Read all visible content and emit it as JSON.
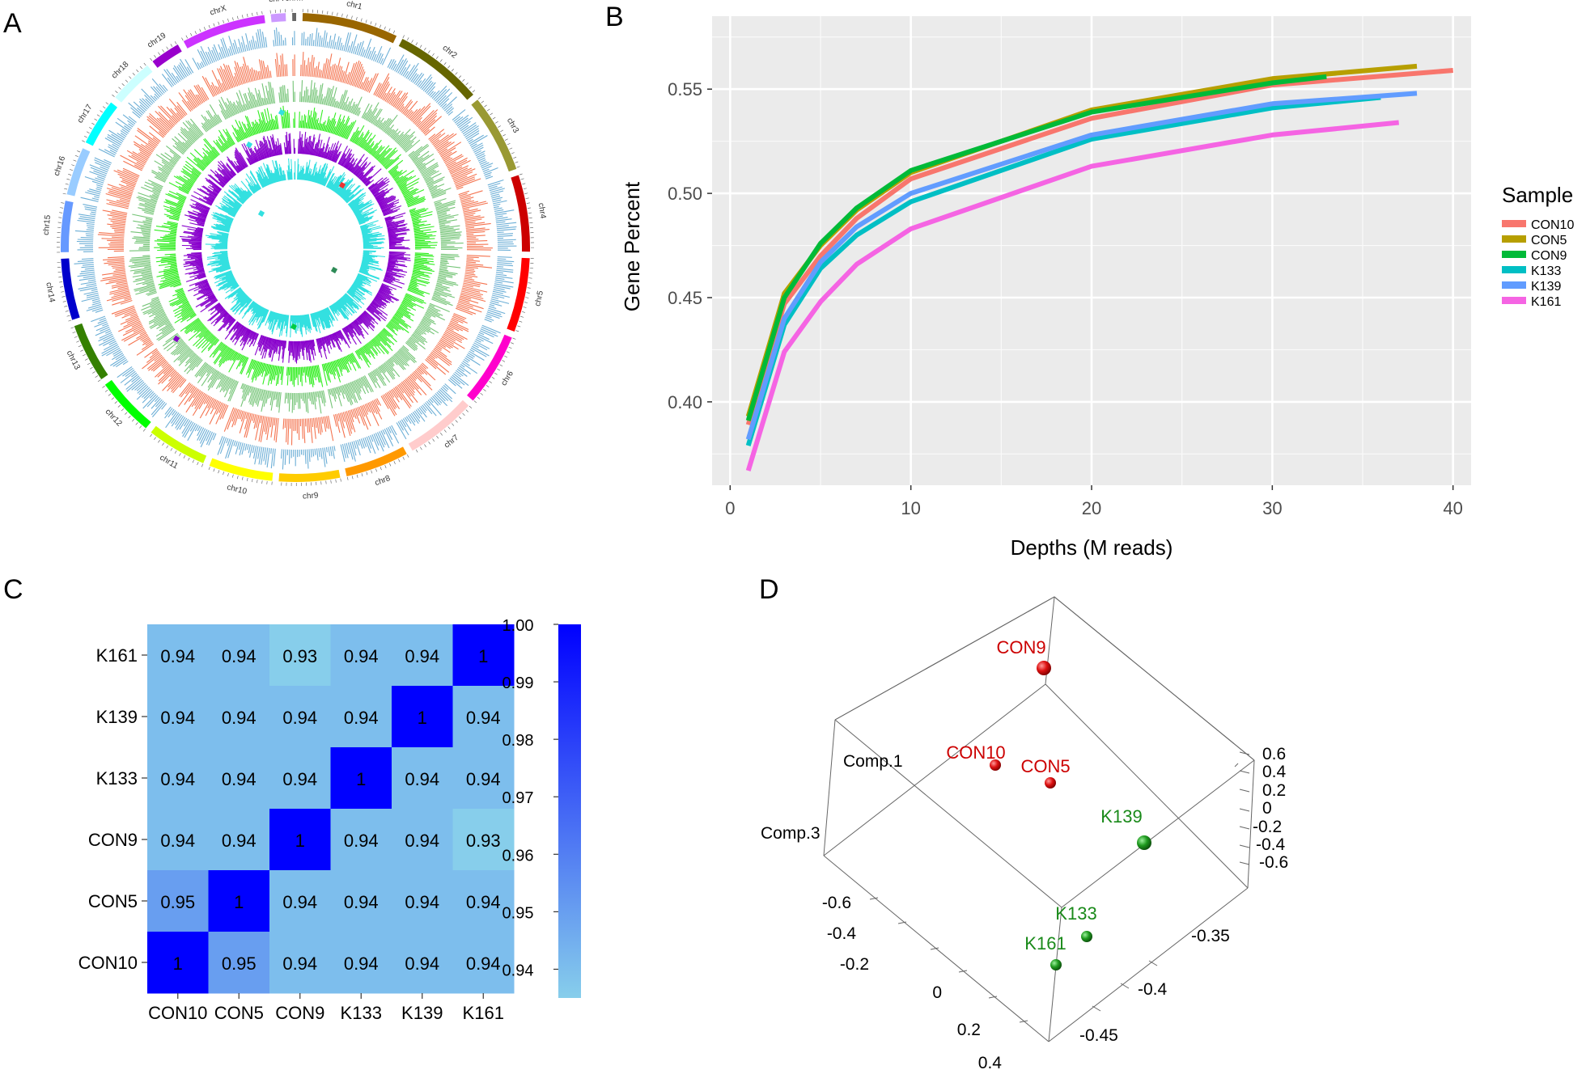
{
  "panels": {
    "a": "A",
    "b": "B",
    "c": "C",
    "d": "D"
  },
  "circos": {
    "chromosomes": [
      "chr1",
      "chr2",
      "chr3",
      "chr4",
      "chr5",
      "chr6",
      "chr7",
      "chr8",
      "chr9",
      "chr10",
      "chr11",
      "chr12",
      "chr13",
      "chr14",
      "chr15",
      "chr16",
      "chr17",
      "chr18",
      "chr19",
      "chrX",
      "chrY",
      "chrM"
    ],
    "chrom_colors": [
      "#996600",
      "#666600",
      "#999933",
      "#cc0000",
      "#ff0000",
      "#ff00cc",
      "#ffcccc",
      "#ff9900",
      "#ffcc00",
      "#ffff00",
      "#ccff00",
      "#00ff00",
      "#358000",
      "#0000cc",
      "#6699ff",
      "#99ccff",
      "#00ffff",
      "#ccffff",
      "#9900cc",
      "#cc33ff",
      "#cc99ff",
      "#666666"
    ],
    "track_colors": [
      "#6baed6",
      "#f4734f",
      "#74c476",
      "#33ee22",
      "#8800cc",
      "#33e0e0"
    ]
  },
  "chart_data": [
    {
      "type": "line",
      "xlabel": "Depths (M reads)",
      "ylabel": "Gene Percent",
      "xlim": [
        -1,
        41
      ],
      "ylim": [
        0.36,
        0.585
      ],
      "x_ticks": [
        0,
        10,
        20,
        30,
        40
      ],
      "y_ticks": [
        0.4,
        0.45,
        0.5,
        0.55
      ],
      "y_tick_labels": [
        "0.40",
        "0.45",
        "0.50",
        "0.55"
      ],
      "legend_title": "Sample",
      "legend_position": "right",
      "series": [
        {
          "name": "CON10",
          "color": "#f8766d",
          "x": [
            1,
            3,
            5,
            7,
            10,
            20,
            30,
            40
          ],
          "y": [
            0.389,
            0.447,
            0.47,
            0.488,
            0.507,
            0.536,
            0.552,
            0.559
          ]
        },
        {
          "name": "CON5",
          "color": "#b79f00",
          "x": [
            1,
            3,
            5,
            7,
            10,
            20,
            30,
            38
          ],
          "y": [
            0.393,
            0.452,
            0.475,
            0.492,
            0.51,
            0.54,
            0.555,
            0.561
          ]
        },
        {
          "name": "CON9",
          "color": "#00ba38",
          "x": [
            1,
            3,
            5,
            7,
            10,
            20,
            30,
            33
          ],
          "y": [
            0.391,
            0.45,
            0.476,
            0.493,
            0.511,
            0.539,
            0.553,
            0.556
          ]
        },
        {
          "name": "K133",
          "color": "#00bfc4",
          "x": [
            1,
            3,
            5,
            7,
            10,
            20,
            30,
            36
          ],
          "y": [
            0.379,
            0.437,
            0.464,
            0.48,
            0.496,
            0.526,
            0.541,
            0.546
          ]
        },
        {
          "name": "K139",
          "color": "#619cff",
          "x": [
            1,
            3,
            5,
            7,
            10,
            20,
            30,
            38
          ],
          "y": [
            0.382,
            0.44,
            0.467,
            0.484,
            0.5,
            0.528,
            0.543,
            0.548
          ]
        },
        {
          "name": "K161",
          "color": "#f564e3",
          "x": [
            1,
            3,
            5,
            7,
            10,
            20,
            30,
            37
          ],
          "y": [
            0.367,
            0.424,
            0.448,
            0.466,
            0.483,
            0.513,
            0.528,
            0.534
          ]
        }
      ]
    },
    {
      "type": "heatmap",
      "x_categories": [
        "CON10",
        "CON5",
        "CON9",
        "K133",
        "K139",
        "K161"
      ],
      "y_categories": [
        "K161",
        "K139",
        "K133",
        "CON9",
        "CON5",
        "CON10"
      ],
      "values": [
        [
          0.94,
          0.94,
          0.93,
          0.94,
          0.94,
          1
        ],
        [
          0.94,
          0.94,
          0.94,
          0.94,
          1,
          0.94
        ],
        [
          0.94,
          0.94,
          0.94,
          1,
          0.94,
          0.94
        ],
        [
          0.94,
          0.94,
          1,
          0.94,
          0.94,
          0.93
        ],
        [
          0.95,
          1,
          0.94,
          0.94,
          0.94,
          0.94
        ],
        [
          1,
          0.95,
          0.94,
          0.94,
          0.94,
          0.94
        ]
      ],
      "value_labels": [
        [
          "0.94",
          "0.94",
          "0.93",
          "0.94",
          "0.94",
          "1"
        ],
        [
          "0.94",
          "0.94",
          "0.94",
          "0.94",
          "1",
          "0.94"
        ],
        [
          "0.94",
          "0.94",
          "0.94",
          "1",
          "0.94",
          "0.94"
        ],
        [
          "0.94",
          "0.94",
          "1",
          "0.94",
          "0.94",
          "0.93"
        ],
        [
          "0.95",
          "1",
          "0.94",
          "0.94",
          "0.94",
          "0.94"
        ],
        [
          "1",
          "0.95",
          "0.94",
          "0.94",
          "0.94",
          "0.94"
        ]
      ],
      "colorbar": {
        "min": 0.935,
        "max": 1.0,
        "ticks": [
          "1.00",
          "0.99",
          "0.98",
          "0.97",
          "0.96",
          "0.95",
          "0.94"
        ],
        "low_color": "#87ceeb",
        "high_color": "#0000ff"
      }
    },
    {
      "type": "scatter",
      "subtype": "3d-pca",
      "axis_labels": [
        "Comp.1",
        "Comp.3"
      ],
      "comp1_ticks": [
        "-0.6",
        "-0.4",
        "-0.2",
        "0",
        "0.2",
        "0.4"
      ],
      "comp2_ticks": [
        "-0.35",
        "-0.4",
        "-0.45"
      ],
      "comp3_ticks": [
        "0.6",
        "0.4",
        "0.2",
        "0",
        "-0.2",
        "-0.4",
        "-0.6"
      ],
      "points": [
        {
          "label": "CON9",
          "group": "CON",
          "color": "#cc0000"
        },
        {
          "label": "CON10",
          "group": "CON",
          "color": "#cc0000"
        },
        {
          "label": "CON5",
          "group": "CON",
          "color": "#cc0000"
        },
        {
          "label": "K139",
          "group": "K",
          "color": "#1a8a1a"
        },
        {
          "label": "K133",
          "group": "K",
          "color": "#1a8a1a"
        },
        {
          "label": "K161",
          "group": "K",
          "color": "#1a8a1a"
        }
      ]
    }
  ]
}
